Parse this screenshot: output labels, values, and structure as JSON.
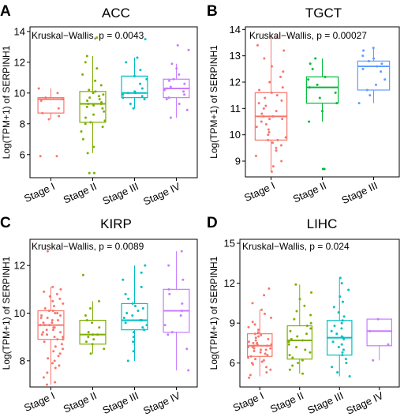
{
  "chart_data": [
    {
      "type": "box",
      "panel_letter": "A",
      "title": "ACC",
      "ylabel": "Log(TPM+1) of SERPINH1",
      "annotation": "Kruskal−Wallis, p = 0.0043",
      "ylim": [
        4.5,
        14.3
      ],
      "yticks": [
        6,
        8,
        10,
        12,
        14
      ],
      "categories": [
        "Stage I",
        "Stage II",
        "Stage III",
        "Stage IV"
      ],
      "colors": [
        "#F8766D",
        "#7CAE00",
        "#00BFC4",
        "#C77CFF"
      ],
      "series": [
        {
          "category": "Stage I",
          "min": 8.3,
          "q1": 8.7,
          "median": 9.6,
          "q3": 9.7,
          "max": 10.3,
          "points": [
            5.9,
            5.9,
            8.3,
            8.5,
            8.7,
            9.0,
            9.5,
            9.6,
            9.7,
            10.0,
            10.3
          ]
        },
        {
          "category": "Stage II",
          "min": 6.1,
          "q1": 8.1,
          "median": 9.3,
          "q3": 10.1,
          "max": 12.4,
          "points": [
            4.8,
            4.8,
            6.1,
            6.5,
            7.0,
            7.5,
            7.8,
            8.0,
            8.1,
            8.2,
            8.4,
            8.6,
            8.8,
            9.0,
            9.1,
            9.2,
            9.3,
            9.3,
            9.4,
            9.5,
            9.6,
            9.7,
            9.8,
            9.9,
            10.0,
            10.1,
            10.2,
            10.5,
            10.8,
            11.2,
            11.6,
            12.0,
            12.4,
            13.6
          ]
        },
        {
          "category": "Stage III",
          "min": 9.0,
          "q1": 9.7,
          "median": 10.0,
          "q3": 11.1,
          "max": 12.3,
          "points": [
            9.0,
            9.3,
            9.6,
            9.7,
            9.8,
            9.9,
            10.0,
            10.0,
            10.1,
            10.3,
            10.6,
            10.9,
            11.1,
            11.5,
            12.0,
            12.3,
            13.5
          ]
        },
        {
          "category": "Stage IV",
          "min": 8.4,
          "q1": 9.7,
          "median": 10.3,
          "q3": 10.9,
          "max": 11.9,
          "points": [
            8.4,
            8.9,
            9.3,
            9.6,
            9.7,
            9.9,
            10.1,
            10.2,
            10.3,
            10.4,
            10.6,
            10.8,
            10.9,
            11.2,
            11.6,
            11.9,
            12.8,
            13.1
          ]
        }
      ]
    },
    {
      "type": "box",
      "panel_letter": "B",
      "title": "TGCT",
      "ylabel": "Log(TPM+1) of SERPINH1",
      "annotation": "Kruskal−Wallis, p = 0.00027",
      "ylim": [
        8.4,
        14.1
      ],
      "yticks": [
        9,
        10,
        11,
        12,
        13,
        14
      ],
      "categories": [
        "Stage I",
        "Stage II",
        "Stage III"
      ],
      "colors": [
        "#F8766D",
        "#00BA38",
        "#619CFF"
      ],
      "series": [
        {
          "category": "Stage I",
          "min": 8.6,
          "q1": 9.8,
          "median": 10.7,
          "q3": 11.6,
          "max": 13.7,
          "points": [
            8.6,
            8.8,
            9.0,
            9.2,
            9.4,
            9.5,
            9.6,
            9.7,
            9.8,
            9.8,
            9.9,
            10.0,
            10.1,
            10.2,
            10.3,
            10.4,
            10.5,
            10.6,
            10.6,
            10.7,
            10.7,
            10.8,
            10.9,
            11.0,
            11.1,
            11.2,
            11.3,
            11.4,
            11.5,
            11.6,
            11.7,
            11.8,
            12.0,
            12.2,
            12.4,
            12.6,
            12.9,
            13.2,
            13.4,
            13.7
          ]
        },
        {
          "category": "Stage II",
          "min": 10.5,
          "q1": 11.2,
          "median": 11.8,
          "q3": 12.2,
          "max": 12.9,
          "points": [
            8.7,
            8.7,
            10.5,
            10.9,
            11.2,
            11.4,
            11.6,
            11.8,
            11.9,
            12.1,
            12.2,
            12.5,
            12.7,
            12.9
          ]
        },
        {
          "category": "Stage III",
          "min": 11.2,
          "q1": 11.7,
          "median": 12.6,
          "q3": 12.8,
          "max": 13.3,
          "points": [
            11.2,
            11.5,
            11.7,
            11.9,
            12.1,
            12.4,
            12.5,
            12.6,
            12.7,
            12.8,
            12.9,
            13.0,
            13.2,
            13.3
          ]
        }
      ]
    },
    {
      "type": "box",
      "panel_letter": "C",
      "title": "KIRP",
      "ylabel": "Log(TPM+1) of SERPINH1",
      "annotation": "Kruskal−Wallis, p = 0.0089",
      "ylim": [
        6.9,
        13.1
      ],
      "yticks": [
        8,
        10,
        12
      ],
      "categories": [
        "Stage I",
        "Stage II",
        "Stage III",
        "Stage IV"
      ],
      "colors": [
        "#F8766D",
        "#7CAE00",
        "#00BFC4",
        "#C77CFF"
      ],
      "series": [
        {
          "category": "Stage I",
          "min": 7.0,
          "q1": 8.9,
          "median": 9.5,
          "q3": 10.1,
          "max": 11.1,
          "points": [
            7.0,
            7.1,
            7.3,
            7.5,
            7.7,
            7.8,
            7.9,
            8.0,
            8.1,
            8.2,
            8.3,
            8.4,
            8.5,
            8.6,
            8.7,
            8.8,
            8.9,
            8.9,
            9.0,
            9.0,
            9.1,
            9.1,
            9.2,
            9.2,
            9.3,
            9.3,
            9.4,
            9.4,
            9.5,
            9.5,
            9.5,
            9.6,
            9.6,
            9.7,
            9.7,
            9.8,
            9.8,
            9.9,
            9.9,
            10.0,
            10.0,
            10.1,
            10.1,
            10.2,
            10.3,
            10.4,
            10.5,
            10.6,
            10.7,
            10.8,
            10.9,
            11.0,
            11.1,
            12.6
          ]
        },
        {
          "category": "Stage II",
          "min": 8.3,
          "q1": 8.7,
          "median": 9.1,
          "q3": 9.7,
          "max": 10.5,
          "points": [
            8.3,
            8.5,
            8.7,
            8.8,
            8.9,
            9.0,
            9.1,
            9.1,
            9.2,
            9.4,
            9.6,
            9.7,
            9.9,
            10.2,
            10.5,
            11.6
          ]
        },
        {
          "category": "Stage III",
          "min": 8.0,
          "q1": 9.3,
          "median": 9.7,
          "q3": 10.4,
          "max": 12.0,
          "points": [
            8.0,
            8.4,
            8.8,
            9.0,
            9.2,
            9.3,
            9.4,
            9.5,
            9.6,
            9.7,
            9.7,
            9.8,
            9.9,
            10.0,
            10.1,
            10.2,
            10.3,
            10.4,
            10.6,
            10.8,
            11.1,
            11.4,
            11.7,
            12.0
          ]
        },
        {
          "category": "Stage IV",
          "min": 7.6,
          "q1": 9.2,
          "median": 10.1,
          "q3": 11.0,
          "max": 12.6,
          "points": [
            7.6,
            8.5,
            9.1,
            9.2,
            9.5,
            9.9,
            10.1,
            10.4,
            10.8,
            11.0,
            11.4,
            12.0,
            12.6
          ]
        }
      ]
    },
    {
      "type": "box",
      "panel_letter": "D",
      "title": "LIHC",
      "ylabel": "Log(TPM+1) of SERPINH1",
      "annotation": "Kruskal−Wallis, p = 0.024",
      "ylim": [
        4.2,
        15.3
      ],
      "yticks": [
        6,
        9,
        12,
        15
      ],
      "categories": [
        "Stage I",
        "Stage II",
        "Stage III",
        "Stage IV"
      ],
      "colors": [
        "#F8766D",
        "#7CAE00",
        "#00BFC4",
        "#C77CFF"
      ],
      "series": [
        {
          "category": "Stage I",
          "min": 5.0,
          "q1": 6.5,
          "median": 7.3,
          "q3": 8.2,
          "max": 10.0,
          "points": [
            4.9,
            5.1,
            5.3,
            5.5,
            5.7,
            5.9,
            6.0,
            6.1,
            6.2,
            6.3,
            6.4,
            6.5,
            6.6,
            6.7,
            6.8,
            6.9,
            7.0,
            7.0,
            7.1,
            7.1,
            7.2,
            7.2,
            7.3,
            7.3,
            7.4,
            7.4,
            7.5,
            7.5,
            7.6,
            7.7,
            7.8,
            7.9,
            8.0,
            8.1,
            8.2,
            8.3,
            8.5,
            8.7,
            8.9,
            9.1,
            9.4,
            9.7,
            10.0,
            10.5,
            11.1,
            11.6
          ]
        },
        {
          "category": "Stage II",
          "min": 5.2,
          "q1": 6.3,
          "median": 7.7,
          "q3": 8.8,
          "max": 11.9,
          "points": [
            5.2,
            5.5,
            5.8,
            6.0,
            6.2,
            6.4,
            6.6,
            6.8,
            7.0,
            7.2,
            7.4,
            7.6,
            7.7,
            7.8,
            8.0,
            8.2,
            8.4,
            8.6,
            8.8,
            9.0,
            9.3,
            9.6,
            9.9,
            10.3,
            10.8,
            11.3,
            11.9
          ]
        },
        {
          "category": "Stage III",
          "min": 5.0,
          "q1": 6.6,
          "median": 7.9,
          "q3": 9.2,
          "max": 12.4,
          "points": [
            5.0,
            5.3,
            5.7,
            6.0,
            6.3,
            6.6,
            6.8,
            7.0,
            7.2,
            7.4,
            7.6,
            7.8,
            7.9,
            8.0,
            8.2,
            8.4,
            8.6,
            8.8,
            9.0,
            9.2,
            9.5,
            9.8,
            10.2,
            10.6,
            11.0,
            11.5,
            12.0,
            12.4
          ]
        },
        {
          "category": "Stage IV",
          "min": 6.2,
          "q1": 7.3,
          "median": 8.4,
          "q3": 9.3,
          "max": 9.3,
          "points": [
            6.2,
            7.4,
            8.4,
            9.3
          ]
        }
      ]
    }
  ]
}
